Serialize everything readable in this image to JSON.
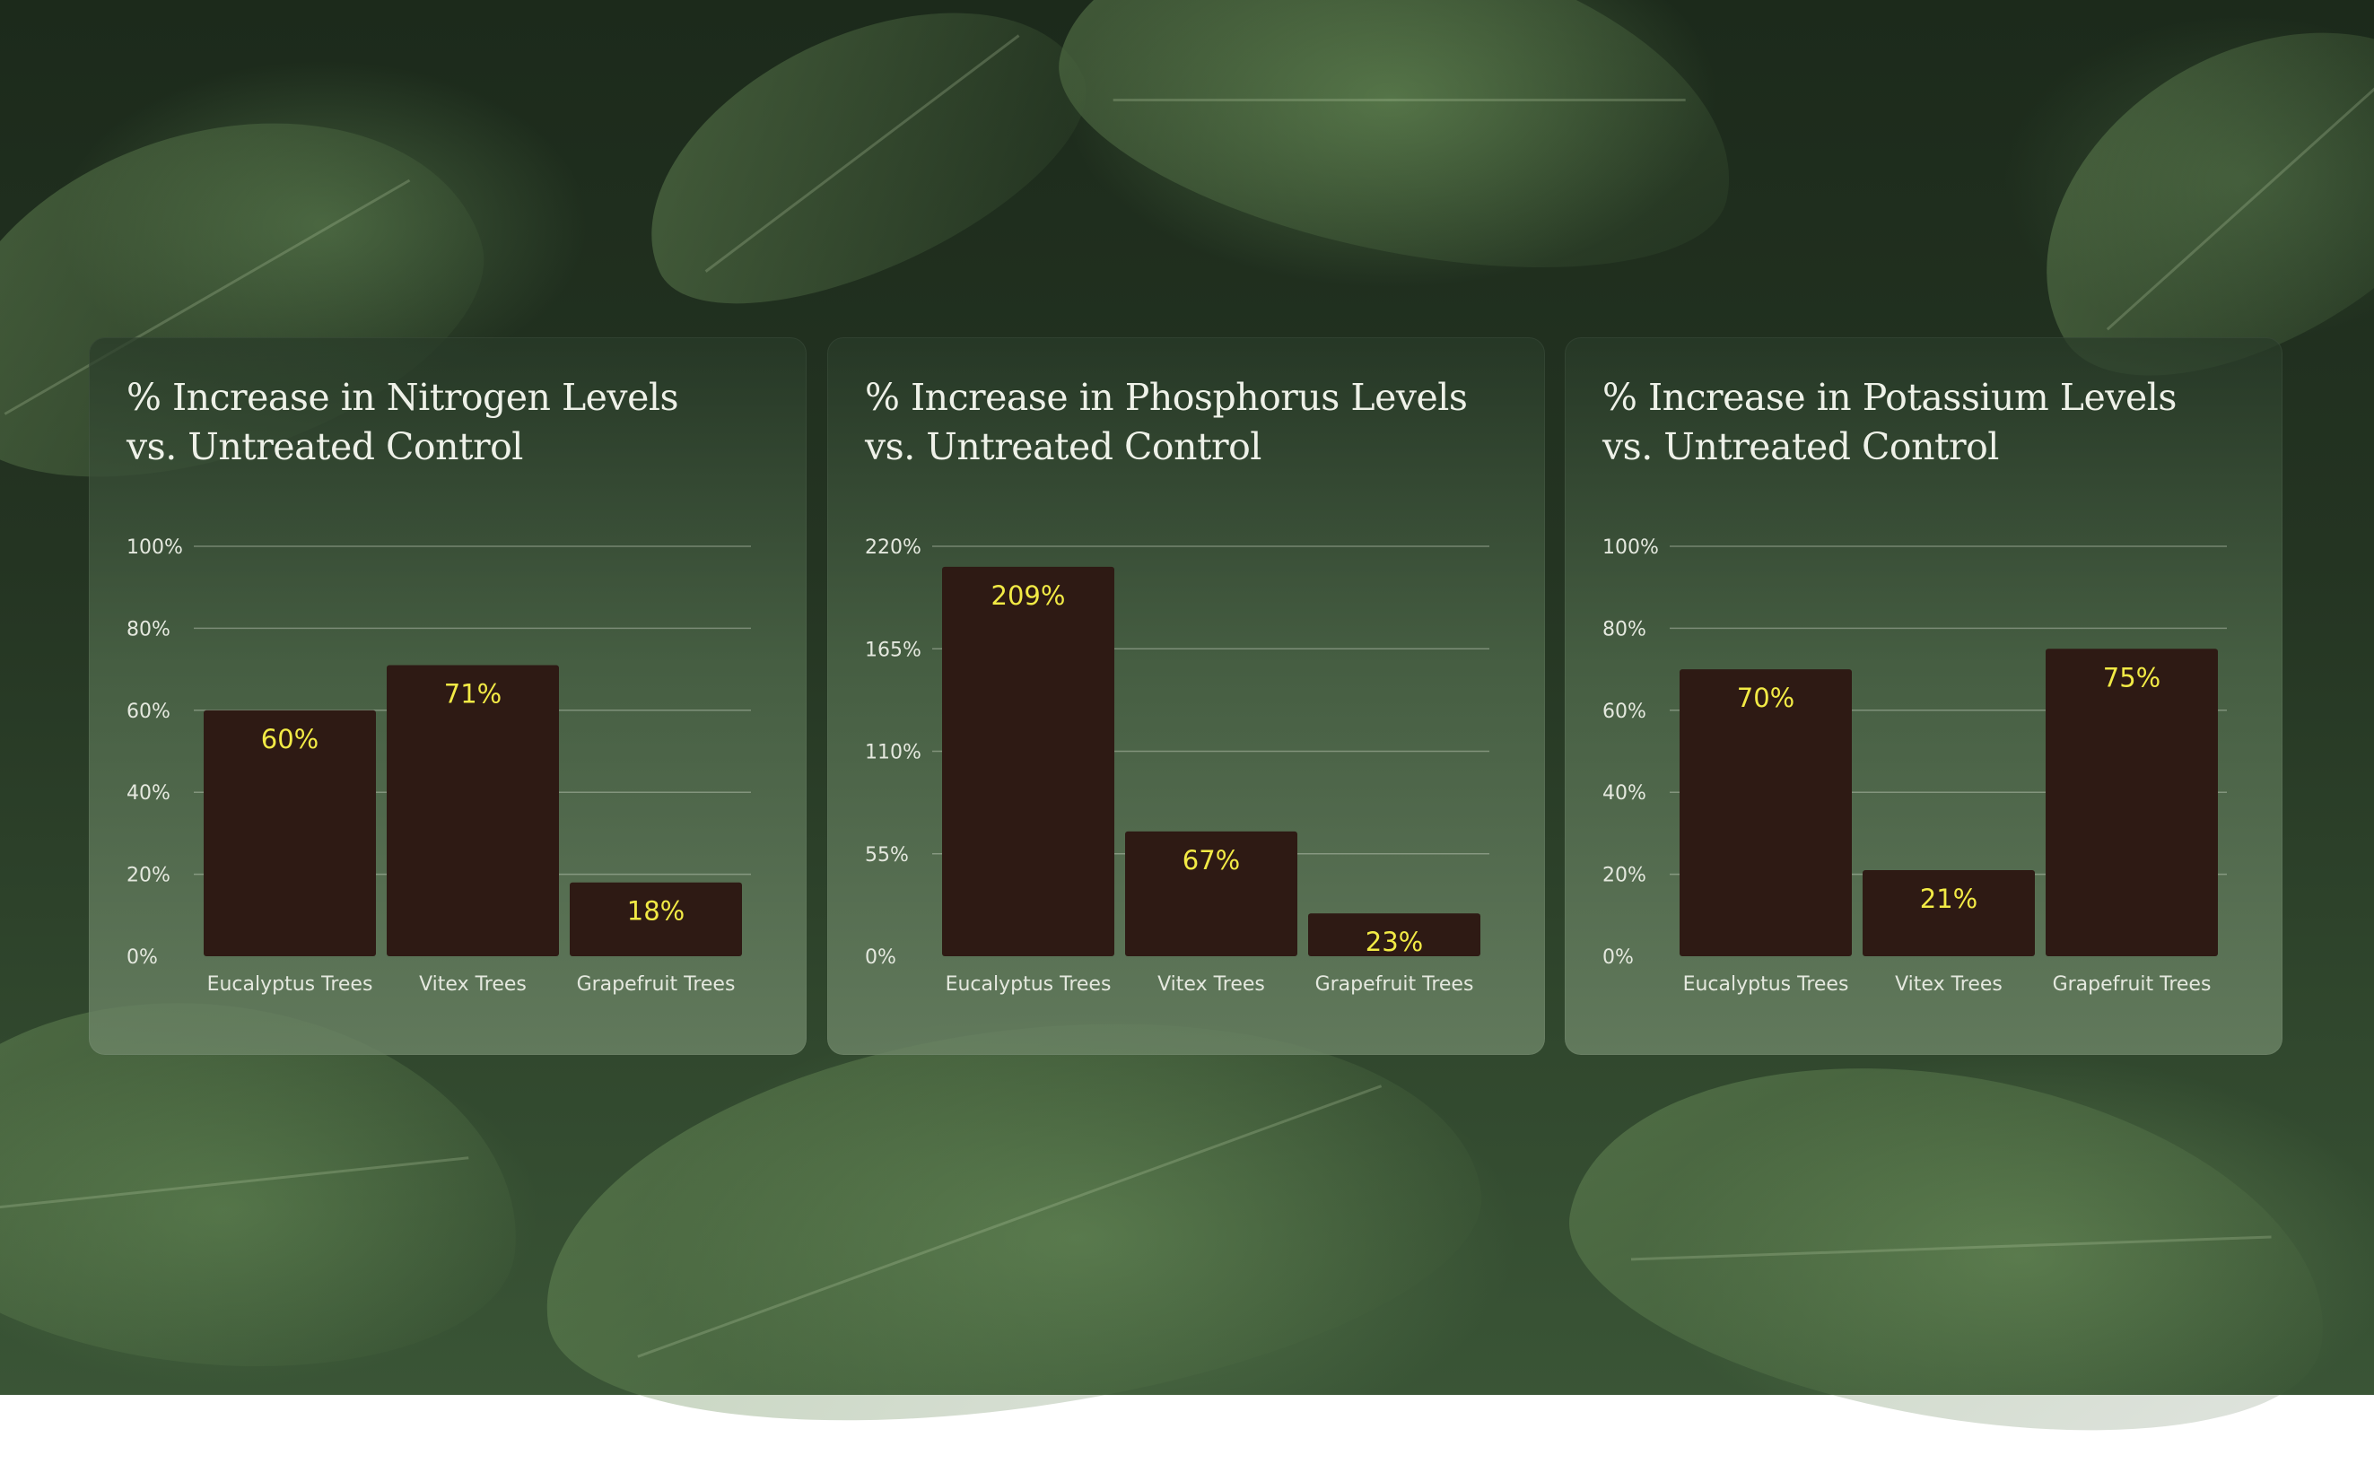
{
  "chart_data": [
    {
      "type": "bar",
      "title_lines": [
        "% Increase in Nitrogen Levels",
        "vs. Untreated Control"
      ],
      "categories": [
        "Eucalyptus Trees",
        "Vitex Trees",
        "Grapefruit Trees"
      ],
      "values": [
        60,
        71,
        18
      ],
      "value_labels": [
        "60%",
        "71%",
        "18%"
      ],
      "yticks": [
        0,
        20,
        40,
        60,
        80,
        100
      ],
      "ytick_labels": [
        "0%",
        "20%",
        "40%",
        "60%",
        "80%",
        "100%"
      ],
      "ylim": [
        0,
        100
      ],
      "grid": true,
      "xlabel": "",
      "ylabel": ""
    },
    {
      "type": "bar",
      "title_lines": [
        "% Increase in Phosphorus Levels",
        "vs. Untreated Control"
      ],
      "categories": [
        "Eucalyptus Trees",
        "Vitex Trees",
        "Grapefruit Trees"
      ],
      "values": [
        209,
        67,
        23
      ],
      "value_labels": [
        "209%",
        "67%",
        "23%"
      ],
      "yticks": [
        0,
        55,
        110,
        165,
        220
      ],
      "ytick_labels": [
        "0%",
        "55%",
        "110%",
        "165%",
        "220%"
      ],
      "ylim": [
        0,
        220
      ],
      "grid": true,
      "xlabel": "",
      "ylabel": ""
    },
    {
      "type": "bar",
      "title_lines": [
        "% Increase in Potassium Levels",
        "vs. Untreated Control"
      ],
      "categories": [
        "Eucalyptus Trees",
        "Vitex Trees",
        "Grapefruit Trees"
      ],
      "values": [
        70,
        21,
        75
      ],
      "value_labels": [
        "70%",
        "21%",
        "75%"
      ],
      "yticks": [
        0,
        20,
        40,
        60,
        80,
        100
      ],
      "ytick_labels": [
        "0%",
        "20%",
        "40%",
        "60%",
        "80%",
        "100%"
      ],
      "ylim": [
        0,
        100
      ],
      "grid": true,
      "xlabel": "",
      "ylabel": ""
    }
  ],
  "colors": {
    "bar": "#2e1a14",
    "value_label": "#f2ea45",
    "gridline": "rgba(230,236,222,0.35)",
    "text": "#e4e8de",
    "title": "#eef1e8"
  }
}
